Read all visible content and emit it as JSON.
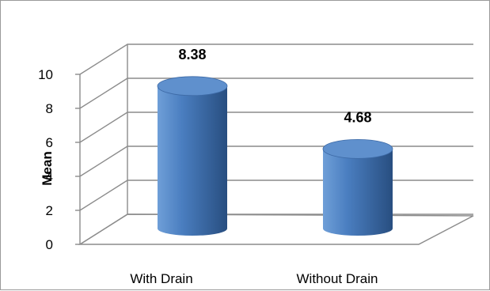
{
  "chart_data": {
    "type": "bar",
    "style": "3d-cylinder",
    "categories": [
      "With Drain",
      "Without Drain"
    ],
    "values": [
      8.38,
      4.68
    ],
    "data_labels": [
      "8.38",
      "4.68"
    ],
    "ylabel": "Mean",
    "ylim": [
      0,
      10
    ],
    "yticks": [
      "0",
      "2",
      "4",
      "6",
      "8",
      "10"
    ],
    "grid": true,
    "legend": "none",
    "colors": {
      "bar_light": "#6f9fd8",
      "bar_mid": "#4a7ec0",
      "bar_dark": "#284e80",
      "bar_top": "#5f90cd",
      "grid": "#8c8c8c"
    }
  }
}
